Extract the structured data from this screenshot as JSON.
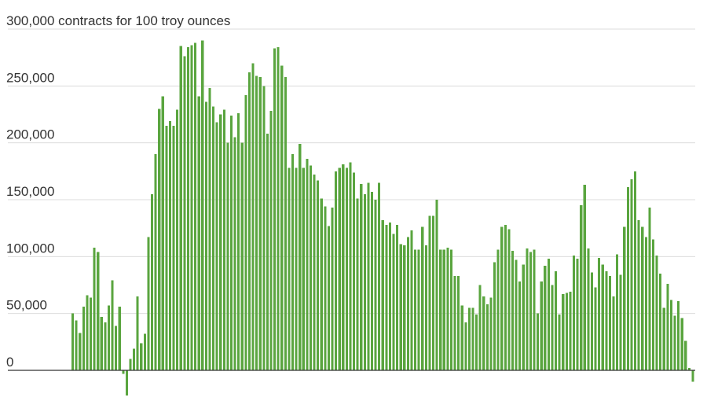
{
  "chart_data": {
    "type": "bar",
    "ylabel": "contracts for 100 troy ounces",
    "ylim": [
      0,
      300000
    ],
    "yticks": [
      0,
      50000,
      100000,
      150000,
      200000,
      250000,
      300000
    ],
    "ytick_labels": [
      "0",
      "50,000",
      "100,000",
      "150,000",
      "200,000",
      "250,000",
      "300,000 contracts for 100 troy ounces"
    ],
    "grid": true,
    "legend": "none",
    "bar_color": "#5aa53f",
    "bar_edge_color": "#3f8a2a",
    "values": [
      50000,
      44000,
      33000,
      56000,
      66000,
      64000,
      108000,
      104000,
      47000,
      42000,
      57000,
      79000,
      39000,
      56000,
      -3000,
      -22000,
      10000,
      19000,
      65000,
      24000,
      32000,
      117000,
      155000,
      190000,
      230000,
      241000,
      215000,
      219000,
      215000,
      229000,
      285000,
      276000,
      284000,
      286000,
      288000,
      241000,
      290000,
      236000,
      248000,
      232000,
      218000,
      225000,
      229000,
      200000,
      224000,
      205000,
      226000,
      200000,
      242000,
      262000,
      270000,
      259000,
      258000,
      250000,
      208000,
      228000,
      283000,
      284000,
      268000,
      258000,
      178000,
      190000,
      178000,
      199000,
      178000,
      186000,
      180000,
      172000,
      167000,
      151000,
      144000,
      127000,
      143000,
      175000,
      178000,
      181000,
      178000,
      183000,
      174000,
      151000,
      164000,
      155000,
      165000,
      157000,
      150000,
      165000,
      132000,
      128000,
      130000,
      120000,
      128000,
      111000,
      110000,
      117000,
      123000,
      106000,
      106000,
      126000,
      110000,
      136000,
      136000,
      150000,
      106000,
      106000,
      108000,
      106000,
      83000,
      83000,
      57000,
      42000,
      55000,
      55000,
      49000,
      75000,
      65000,
      58000,
      64000,
      95000,
      106000,
      126000,
      128000,
      124000,
      105000,
      97000,
      78000,
      93000,
      107000,
      104000,
      106000,
      50000,
      78000,
      92000,
      98000,
      75000,
      87000,
      49000,
      67000,
      68000,
      69000,
      101000,
      98000,
      145000,
      163000,
      107000,
      86000,
      73000,
      99000,
      93000,
      87000,
      83000,
      65000,
      102000,
      84000,
      126000,
      161000,
      168000,
      175000,
      132000,
      126000,
      117000,
      143000,
      115000,
      101000,
      85000,
      55000,
      76000,
      62000,
      48000,
      61000,
      46000,
      26000,
      2000,
      -10000
    ]
  }
}
